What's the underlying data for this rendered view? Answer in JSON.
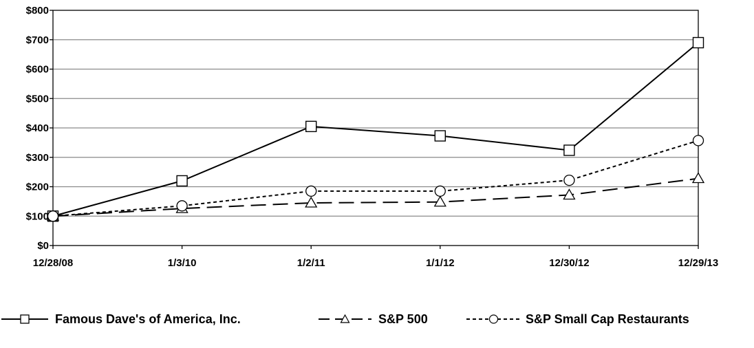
{
  "chart_data": {
    "type": "line",
    "categories": [
      "12/28/08",
      "1/3/10",
      "1/2/11",
      "1/1/12",
      "12/30/12",
      "12/29/13"
    ],
    "ylim": [
      0,
      800
    ],
    "y_ticks": [
      "$0",
      "$100",
      "$200",
      "$300",
      "$400",
      "$500",
      "$600",
      "$700",
      "$800"
    ],
    "grid": "horizontal",
    "legend_position": "bottom",
    "series": [
      {
        "name": "Famous Dave's of America, Inc.",
        "marker": "square",
        "line": "solid",
        "values": [
          100,
          220,
          405,
          373,
          324,
          690
        ]
      },
      {
        "name": "S&P 500",
        "marker": "triangle",
        "line": "long-dash",
        "values": [
          100,
          126,
          145,
          148,
          172,
          228
        ]
      },
      {
        "name": "S&P Small Cap Restaurants",
        "marker": "circle",
        "line": "short-dash",
        "values": [
          100,
          135,
          185,
          185,
          222,
          357
        ]
      }
    ]
  }
}
